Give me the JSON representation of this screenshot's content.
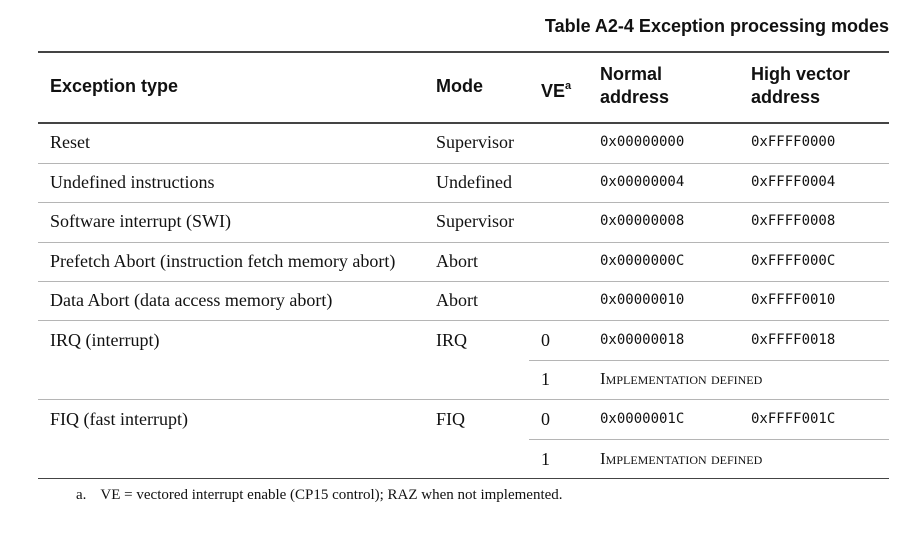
{
  "caption": "Table A2-4 Exception processing modes",
  "headers": {
    "exception_type": "Exception type",
    "mode": "Mode",
    "ve": "VE",
    "ve_note": "a",
    "normal_line1": "Normal",
    "normal_line2": "address",
    "high_line1": "High vector",
    "high_line2": "address"
  },
  "rows": [
    {
      "type": "Reset",
      "mode": "Supervisor",
      "normal": "0x00000000",
      "high": "0xFFFF0000"
    },
    {
      "type": "Undefined instructions",
      "mode": "Undefined",
      "normal": "0x00000004",
      "high": "0xFFFF0004"
    },
    {
      "type": "Software interrupt (SWI)",
      "mode": "Supervisor",
      "normal": "0x00000008",
      "high": "0xFFFF0008"
    },
    {
      "type": "Prefetch Abort (instruction fetch memory abort)",
      "mode": "Abort",
      "normal": "0x0000000C",
      "high": "0xFFFF000C"
    },
    {
      "type": "Data Abort (data access memory abort)",
      "mode": "Abort",
      "normal": "0x00000010",
      "high": "0xFFFF0010"
    },
    {
      "type": "IRQ (interrupt)",
      "mode": "IRQ",
      "ve": "0",
      "normal": "0x00000018",
      "high": "0xFFFF0018"
    },
    {
      "ve": "1",
      "impl": "Implementation defined"
    },
    {
      "type": "FIQ (fast interrupt)",
      "mode": "FIQ",
      "ve": "0",
      "normal": "0x0000001C",
      "high": "0xFFFF001C"
    },
    {
      "ve": "1",
      "impl": "Implementation defined"
    }
  ],
  "footnote": {
    "mark": "a.",
    "text": "VE = vectored interrupt enable (CP15 control); RAZ when not implemented."
  }
}
